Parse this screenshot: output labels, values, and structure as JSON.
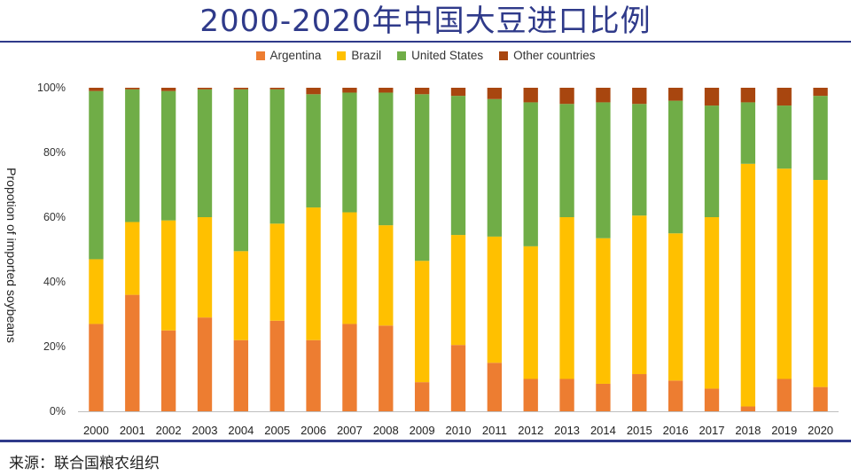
{
  "title": "2000-2020年中国大豆进口比例",
  "source": "来源：联合国粮农组织",
  "chart_data": {
    "type": "bar",
    "stacked": true,
    "percent": true,
    "ylabel": "Propotion of imported soybeans",
    "ylim": [
      0,
      100
    ],
    "yticks": [
      "0%",
      "20%",
      "40%",
      "60%",
      "80%",
      "100%"
    ],
    "legend_position": "top",
    "categories": [
      "2000",
      "2001",
      "2002",
      "2003",
      "2004",
      "2005",
      "2006",
      "2007",
      "2008",
      "2009",
      "2010",
      "2011",
      "2012",
      "2013",
      "2014",
      "2015",
      "2016",
      "2017",
      "2018",
      "2019",
      "2020"
    ],
    "series": [
      {
        "name": "Argentina",
        "color": "#ed7d31",
        "values": [
          27,
          36,
          25,
          29,
          22,
          28,
          22,
          27,
          26.5,
          9,
          20.5,
          15,
          10,
          10,
          8.5,
          11.5,
          9.5,
          7,
          1.5,
          10,
          7.5
        ]
      },
      {
        "name": "Brazil",
        "color": "#ffc000",
        "values": [
          20,
          22.5,
          34,
          31,
          27.5,
          30,
          41,
          34.5,
          31,
          37.5,
          34,
          39,
          41,
          50,
          45,
          49,
          45.5,
          53,
          75,
          65,
          64
        ]
      },
      {
        "name": "United States",
        "color": "#70ad47",
        "values": [
          52,
          41,
          40,
          39.5,
          50,
          41.5,
          35,
          37,
          41,
          51.5,
          43,
          42.5,
          44.5,
          35,
          42,
          34.5,
          41,
          34.5,
          19,
          19.5,
          26
        ]
      },
      {
        "name": "Other countries",
        "color": "#a8460f",
        "values": [
          1,
          0.5,
          1,
          0.5,
          0.5,
          0.5,
          2,
          1.5,
          1.5,
          2,
          2.5,
          3.5,
          4.5,
          5,
          4.5,
          5,
          4,
          5.5,
          4.5,
          5.5,
          2.5
        ]
      }
    ]
  }
}
